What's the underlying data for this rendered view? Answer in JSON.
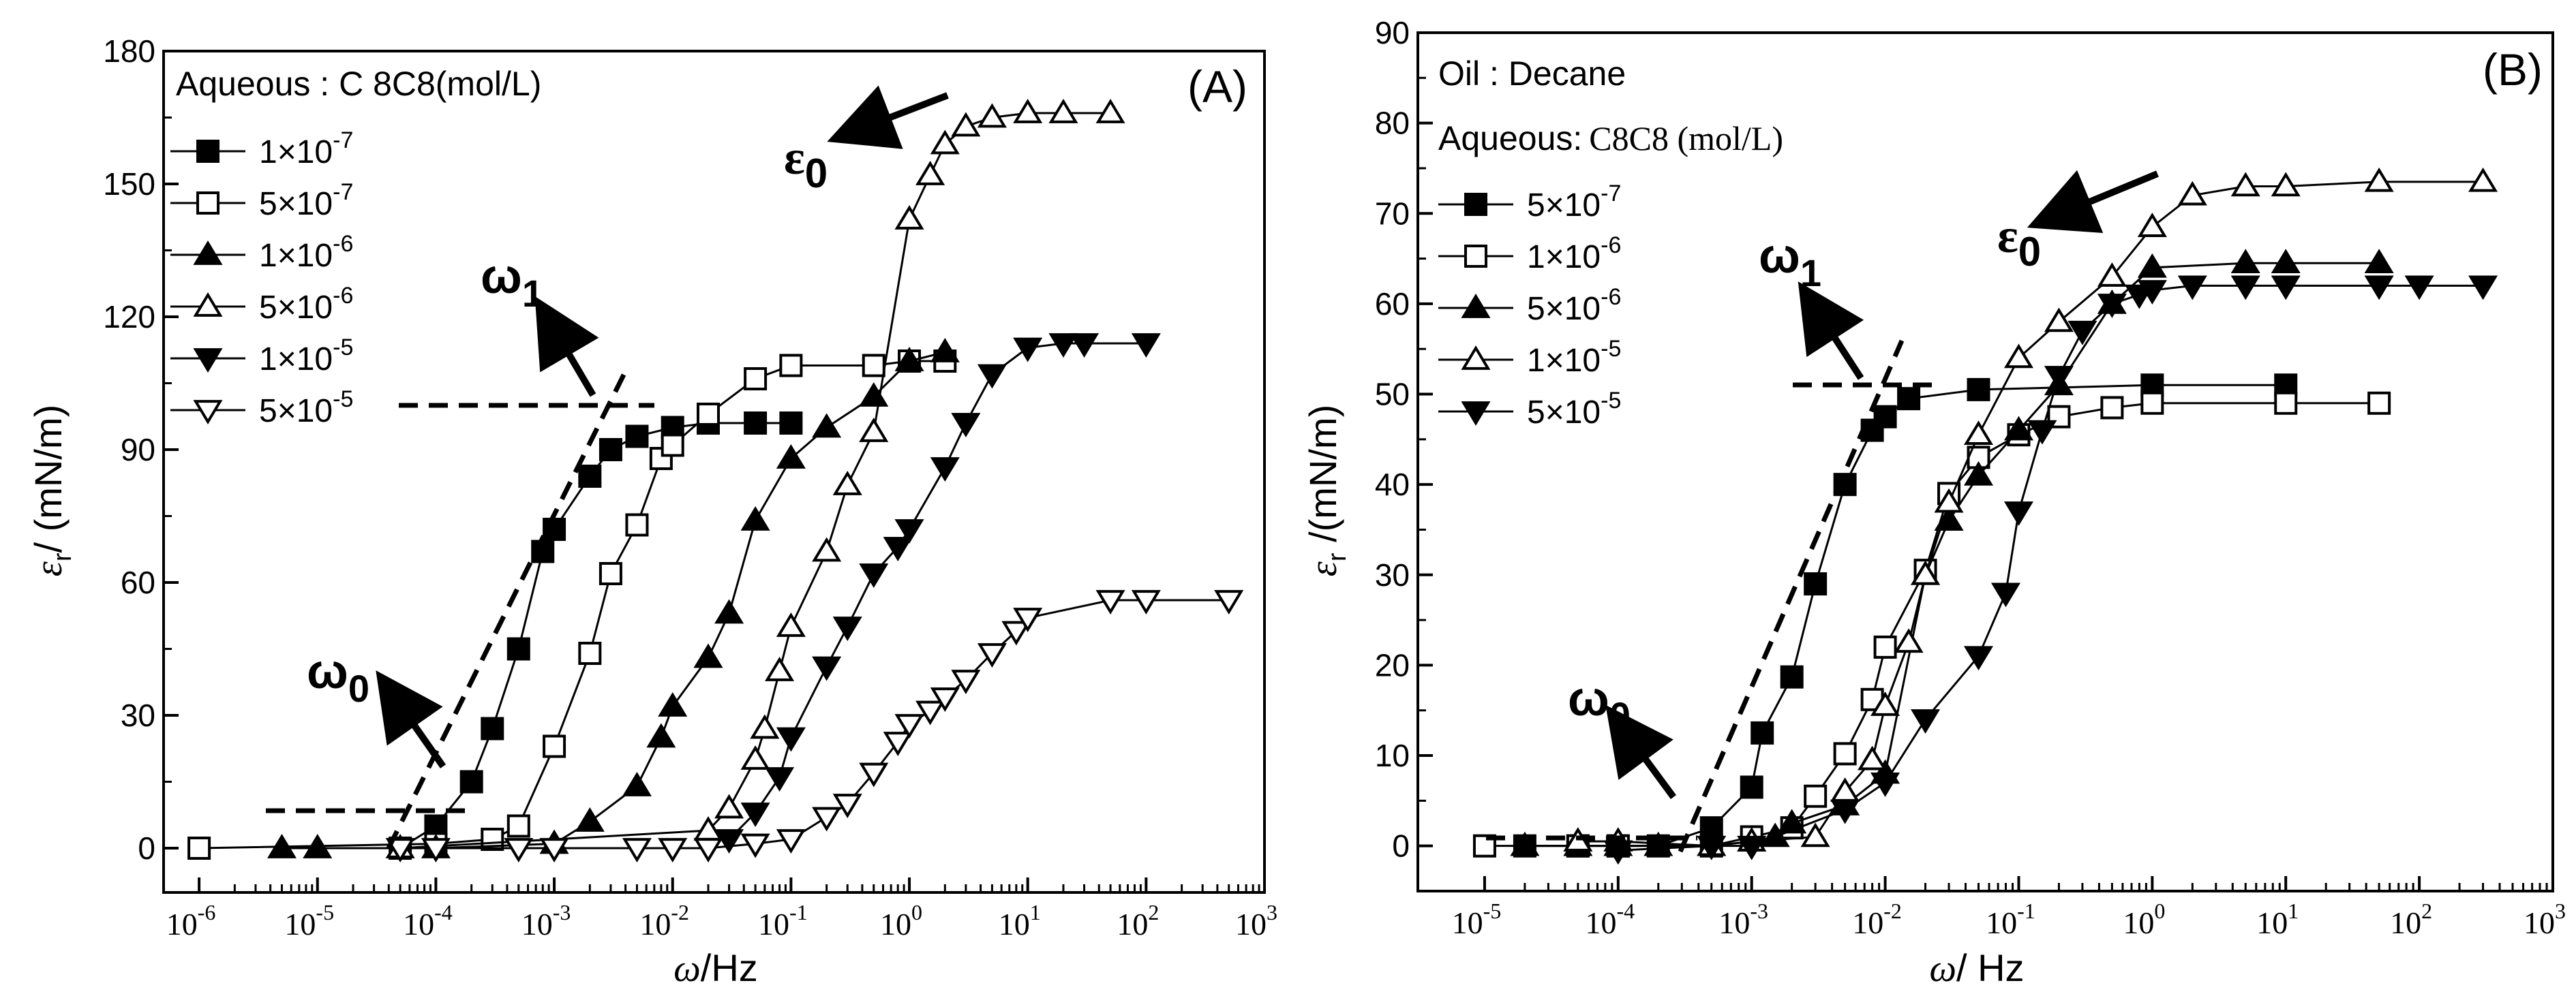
{
  "chart_data": [
    {
      "type": "scatter",
      "panel_label": "(A)",
      "xscale": "log",
      "xlim_exp": [
        -6.3,
        3
      ],
      "ylim": [
        -10,
        180
      ],
      "yticks": [
        0,
        30,
        60,
        90,
        120,
        150,
        180
      ],
      "x_tick_exponents": [
        -6,
        -5,
        -4,
        -3,
        -2,
        -1,
        0,
        1,
        2,
        3
      ],
      "xlabel": {
        "symbol": "ω",
        "unit": "/Hz"
      },
      "ylabel": {
        "symbol": "ε",
        "sub": "r",
        "unit": "/ (mN/m)"
      },
      "legend_title": "Aqueous : C 8C8(mol/L)",
      "series": [
        {
          "name": "1×10-7",
          "mant": "1",
          "exp": "-7",
          "marker": "square",
          "filled": true,
          "x": [
            5e-05,
            0.0001,
            0.0002,
            0.0003,
            0.0005,
            0.0008,
            0.001,
            0.002,
            0.003,
            0.005,
            0.01,
            0.02,
            0.05,
            0.1
          ],
          "y": [
            0,
            5,
            15,
            27,
            45,
            67,
            72,
            84,
            90,
            93,
            95,
            96,
            96,
            96
          ]
        },
        {
          "name": "5×10-7",
          "mant": "5",
          "exp": "-7",
          "marker": "square",
          "filled": false,
          "x": [
            1e-06,
            0.0001,
            0.0003,
            0.0005,
            0.001,
            0.002,
            0.003,
            0.005,
            0.008,
            0.01,
            0.02,
            0.05,
            0.1,
            0.5,
            1,
            2
          ],
          "y": [
            0,
            1,
            2,
            5,
            23,
            44,
            62,
            73,
            88,
            91,
            98,
            106,
            109,
            109,
            110,
            110
          ]
        },
        {
          "name": "1×10-6",
          "mant": "1",
          "exp": "-6",
          "marker": "triangle-up",
          "filled": true,
          "x": [
            5e-06,
            1e-05,
            0.0001,
            0.001,
            0.002,
            0.005,
            0.008,
            0.01,
            0.02,
            0.03,
            0.05,
            0.1,
            0.2,
            0.5,
            1,
            2
          ],
          "y": [
            0,
            0,
            0,
            1,
            6,
            14,
            25,
            32,
            43,
            53,
            74,
            88,
            95,
            102,
            110,
            112
          ]
        },
        {
          "name": "5×10-6",
          "mant": "5",
          "exp": "-6",
          "marker": "triangle-up",
          "filled": false,
          "x": [
            5e-05,
            0.02,
            0.03,
            0.05,
            0.06,
            0.08,
            0.1,
            0.2,
            0.3,
            0.5,
            1,
            1.5,
            2,
            3,
            5,
            10,
            20,
            50
          ],
          "y": [
            0,
            4,
            9,
            20,
            27,
            40,
            50,
            67,
            82,
            94,
            142,
            152,
            159,
            163,
            165,
            166,
            166,
            166
          ]
        },
        {
          "name": "1×10-5",
          "mant": "1",
          "exp": "-5",
          "marker": "triangle-down",
          "filled": true,
          "x": [
            0.03,
            0.05,
            0.08,
            0.1,
            0.2,
            0.3,
            0.5,
            0.8,
            1,
            2,
            3,
            5,
            10,
            20,
            30,
            100
          ],
          "y": [
            2,
            8,
            16,
            25,
            41,
            50,
            62,
            68,
            72,
            86,
            96,
            107,
            113,
            114,
            114,
            114
          ]
        },
        {
          "name": "5×10-5",
          "mant": "5",
          "exp": "-5",
          "marker": "triangle-down",
          "filled": false,
          "x": [
            5e-05,
            0.0001,
            0.0005,
            0.001,
            0.005,
            0.01,
            0.02,
            0.05,
            0.1,
            0.2,
            0.3,
            0.5,
            0.8,
            1,
            1.5,
            2,
            3,
            5,
            8,
            10,
            50,
            100,
            500
          ],
          "y": [
            0,
            0,
            0,
            0,
            0,
            0,
            0,
            1,
            2,
            7,
            10,
            17,
            24,
            28,
            31,
            34,
            38,
            44,
            49,
            52,
            56,
            56,
            56
          ]
        }
      ],
      "annotations": {
        "omega0": {
          "text": "ω",
          "sub": "0"
        },
        "omega1": {
          "text": "ω",
          "sub": "1"
        },
        "epsilon0": {
          "text": "ε",
          "sub": "0"
        }
      }
    },
    {
      "type": "scatter",
      "panel_label": "(B)",
      "xscale": "log",
      "xlim_exp": [
        -5.5,
        3
      ],
      "ylim": [
        -5,
        90
      ],
      "yticks": [
        0,
        10,
        20,
        30,
        40,
        50,
        60,
        70,
        80,
        90
      ],
      "x_tick_exponents": [
        -5,
        -4,
        -3,
        -2,
        -1,
        0,
        1,
        2,
        3
      ],
      "xlabel": {
        "symbol": "ω",
        "unit": "/ Hz"
      },
      "ylabel": {
        "symbol": "ε",
        "sub": "r",
        "unit": " /(mN/m)"
      },
      "legend_title_1": "Oil : Decane",
      "legend_title_2": "Aqueous:",
      "legend_title_2b": "C8C8 (mol/L)",
      "series": [
        {
          "name": "5×10-7",
          "mant": "5",
          "exp": "-7",
          "marker": "square",
          "filled": true,
          "x": [
            2e-05,
            5e-05,
            0.0001,
            0.0002,
            0.0005,
            0.001,
            0.0012,
            0.002,
            0.003,
            0.005,
            0.008,
            0.01,
            0.015,
            0.05,
            1,
            10
          ],
          "y": [
            0,
            0,
            0,
            0,
            2,
            6.5,
            12.5,
            18.7,
            29,
            40,
            46,
            47.5,
            49.5,
            50.5,
            51,
            51
          ]
        },
        {
          "name": "1×10-6",
          "mant": "1",
          "exp": "-6",
          "marker": "square",
          "filled": false,
          "x": [
            1e-05,
            5e-05,
            0.0001,
            0.0005,
            0.001,
            0.002,
            0.003,
            0.005,
            0.008,
            0.01,
            0.02,
            0.03,
            0.05,
            0.1,
            0.2,
            0.5,
            1,
            10,
            50
          ],
          "y": [
            0,
            0,
            0,
            0,
            1,
            2,
            5.5,
            10.2,
            16.2,
            22,
            30.5,
            39,
            43,
            45.5,
            47.5,
            48.5,
            49,
            49,
            49
          ]
        },
        {
          "name": "5×10-6",
          "mant": "5",
          "exp": "-6",
          "marker": "triangle-up",
          "filled": true,
          "x": [
            2e-05,
            5e-05,
            0.0001,
            0.0002,
            0.0005,
            0.001,
            0.0015,
            0.002,
            0.005,
            0.01,
            0.02,
            0.03,
            0.05,
            0.1,
            0.2,
            0.5,
            1,
            5,
            10,
            50
          ],
          "y": [
            0,
            0,
            0,
            0,
            0,
            0.5,
            1,
            2.5,
            4.5,
            8,
            30,
            36,
            41,
            46,
            51,
            60,
            64,
            64.5,
            64.5,
            64.5
          ]
        },
        {
          "name": "1×10-5",
          "mant": "1",
          "exp": "-5",
          "marker": "triangle-up",
          "filled": false,
          "x": [
            5e-05,
            0.0001,
            0.0005,
            0.001,
            0.003,
            0.005,
            0.008,
            0.01,
            0.015,
            0.02,
            0.03,
            0.05,
            0.1,
            0.2,
            0.5,
            1,
            2,
            5,
            10,
            50,
            300
          ],
          "y": [
            0.5,
            0.5,
            0,
            0.5,
            1,
            6,
            9.5,
            15.5,
            22.5,
            30,
            38,
            45.5,
            54,
            58,
            63,
            68.5,
            72,
            73,
            73,
            73.5,
            73.5
          ]
        },
        {
          "name": "5×10-5",
          "mant": "5",
          "exp": "-5",
          "marker": "triangle-down",
          "filled": true,
          "x": [
            0.0001,
            0.0005,
            0.001,
            0.005,
            0.01,
            0.02,
            0.05,
            0.08,
            0.1,
            0.15,
            0.2,
            0.3,
            0.5,
            0.8,
            1,
            2,
            5,
            10,
            50,
            100,
            300
          ],
          "y": [
            -0.5,
            0,
            0,
            4,
            7,
            14,
            21,
            28,
            37,
            46,
            52,
            57,
            60,
            61,
            61.5,
            62,
            62,
            62,
            62,
            62,
            62
          ]
        }
      ],
      "annotations": {
        "omega0": {
          "text": "ω",
          "sub": "0"
        },
        "omega1": {
          "text": "ω",
          "sub": "1"
        },
        "epsilon0": {
          "text": "ε",
          "sub": "0"
        }
      }
    }
  ]
}
